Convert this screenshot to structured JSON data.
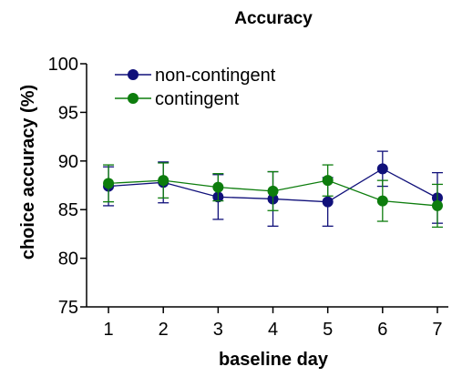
{
  "chart_data": {
    "type": "line",
    "title": "Accuracy",
    "xlabel": "baseline day",
    "ylabel": "choice accuracy (%)",
    "x": [
      1,
      2,
      3,
      4,
      5,
      6,
      7
    ],
    "xlim": [
      0.6,
      7.2
    ],
    "ylim": [
      75,
      100
    ],
    "yticks": [
      75,
      80,
      85,
      90,
      95,
      100
    ],
    "xticks": [
      1,
      2,
      3,
      4,
      5,
      6,
      7
    ],
    "grid": false,
    "legend_position": "top-left",
    "series": [
      {
        "name": "non-contingent",
        "color": "#10107a",
        "values": [
          87.4,
          87.8,
          86.3,
          86.1,
          85.8,
          89.2,
          86.2
        ],
        "error": [
          2.0,
          2.1,
          2.3,
          2.8,
          2.5,
          1.8,
          2.6
        ]
      },
      {
        "name": "contingent",
        "color": "#0d7d0d",
        "values": [
          87.7,
          88.0,
          87.3,
          86.9,
          88.0,
          85.9,
          85.4
        ],
        "error": [
          1.9,
          1.8,
          1.4,
          2.0,
          1.6,
          2.1,
          2.2
        ]
      }
    ]
  }
}
